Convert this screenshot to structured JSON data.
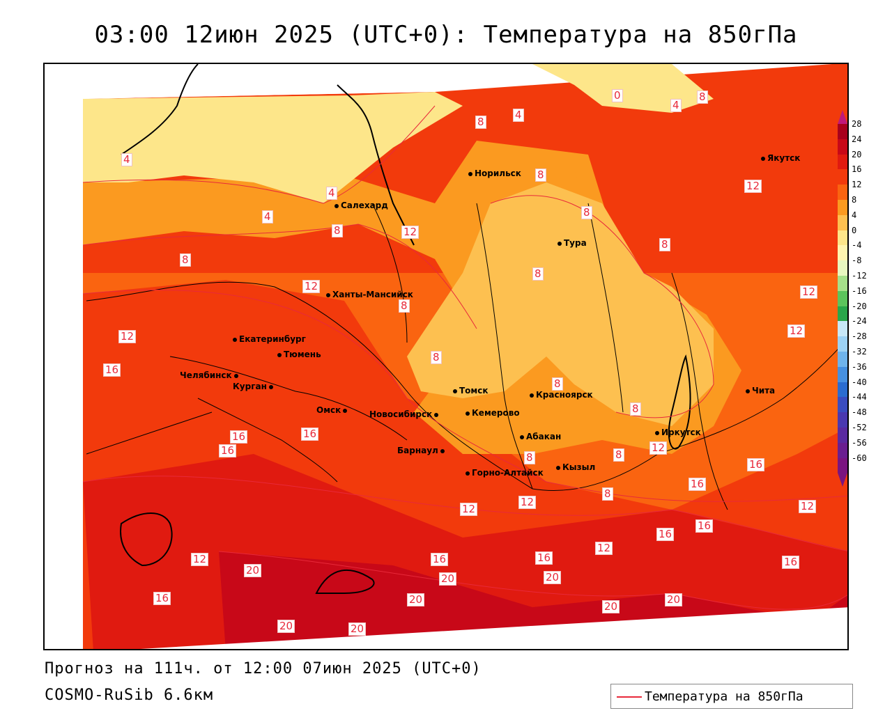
{
  "title": "03:00 12июн 2025 (UTC+0): Температура на 850гПа",
  "footer": {
    "forecast": "Прогноз на 111ч. от 12:00 07июн 2025 (UTC+0)",
    "model": "COSMO-RuSib 6.6км"
  },
  "legend": {
    "label": "Температура на 850гПа",
    "color": "#e8293a"
  },
  "colorbar": {
    "labels": [
      "28",
      "24",
      "20",
      "16",
      "12",
      "8",
      "4",
      "0",
      "-4",
      "-8",
      "-12",
      "-16",
      "-20",
      "-24",
      "-28",
      "-32",
      "-36",
      "-40",
      "-44",
      "-48",
      "-52",
      "-56",
      "-60"
    ],
    "colors": [
      "#a8001c",
      "#c80818",
      "#e01a10",
      "#f23a0c",
      "#fa6410",
      "#fb9a20",
      "#fdc050",
      "#fde68a",
      "#fff5b0",
      "#e8f7c0",
      "#a6e08a",
      "#5cc45c",
      "#2aa64a",
      "#c8e8f8",
      "#9dd2f4",
      "#6fb4ec",
      "#4690e0",
      "#2a6cd0",
      "#3a4cc0",
      "#4a38b0",
      "#5a2aa0",
      "#6a1e90",
      "#7a1480"
    ]
  },
  "cities": [
    {
      "name": "Норильск"
    },
    {
      "name": "Якутск"
    },
    {
      "name": "Салехард"
    },
    {
      "name": "Тура"
    },
    {
      "name": "Ханты-Мансийск"
    },
    {
      "name": "Екатеринбург"
    },
    {
      "name": "Тюмень"
    },
    {
      "name": "Челябинск"
    },
    {
      "name": "Курган"
    },
    {
      "name": "Омск"
    },
    {
      "name": "Новосибирск"
    },
    {
      "name": "Томск"
    },
    {
      "name": "Красноярск"
    },
    {
      "name": "Кемерово"
    },
    {
      "name": "Абакан"
    },
    {
      "name": "Барнаул"
    },
    {
      "name": "Горно-Алтайск"
    },
    {
      "name": "Кызыл"
    },
    {
      "name": "Иркутск"
    },
    {
      "name": "Чита"
    }
  ],
  "contour_labels": [
    "0",
    "4",
    "8",
    "12",
    "16",
    "20"
  ]
}
